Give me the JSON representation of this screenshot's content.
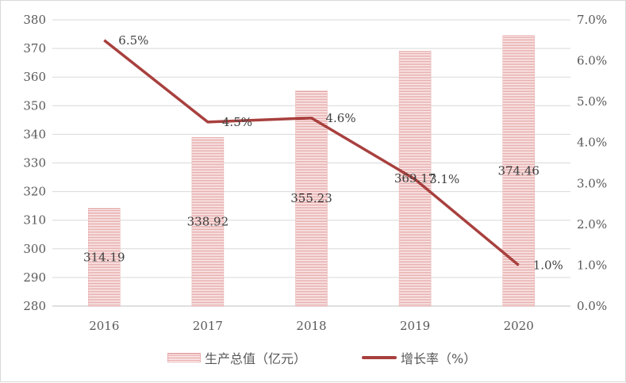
{
  "chart_data": {
    "type": "bar+line",
    "categories": [
      "2016",
      "2017",
      "2018",
      "2019",
      "2020"
    ],
    "series": [
      {
        "name": "生产总值（亿元）",
        "type": "bar",
        "axis": "left",
        "values": [
          314.19,
          338.92,
          355.23,
          369.17,
          374.46
        ],
        "labels": [
          "314.19",
          "338.92",
          "355.23",
          "369.17",
          "374.46"
        ],
        "color": "#e8a0a0"
      },
      {
        "name": "增长率（%）",
        "type": "line",
        "axis": "right",
        "values": [
          6.5,
          4.5,
          4.6,
          3.1,
          1.0
        ],
        "labels": [
          "6.5%",
          "4.5%",
          "4.6%",
          "3.1%",
          "1.0%"
        ],
        "color": "#a8403e"
      }
    ],
    "y_left": {
      "range": [
        280,
        380
      ],
      "ticks": [
        "280",
        "290",
        "300",
        "310",
        "320",
        "330",
        "340",
        "350",
        "360",
        "370",
        "380"
      ]
    },
    "y_right": {
      "range": [
        0,
        7
      ],
      "ticks": [
        "0.0%",
        "1.0%",
        "2.0%",
        "3.0%",
        "4.0%",
        "5.0%",
        "6.0%",
        "7.0%"
      ]
    },
    "grid": true,
    "legend": "bottom"
  }
}
